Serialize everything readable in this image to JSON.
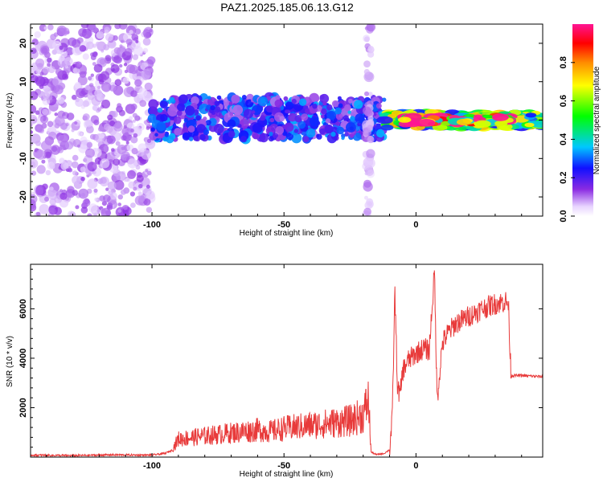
{
  "title": "PAZ1.2025.185.06.13.G12",
  "colors": {
    "snr_line": "#e83a3a",
    "spectrum_purple": "#8a2be2",
    "spectrum_blue": "#1010ff",
    "spectrum_cyan": "#00e0ff",
    "spectrum_green": "#00ff00",
    "spectrum_red": "#ff2020"
  },
  "chart_data": [
    {
      "type": "heatmap",
      "xlabel": "Height of straight line (km)",
      "ylabel": "Frequency (Hz)",
      "xlim": [
        -146,
        48
      ],
      "ylim": [
        -25,
        25
      ],
      "xticks": [
        -100,
        -50,
        0
      ],
      "xtick_labels": [
        "-100",
        "-50",
        "0"
      ],
      "yticks": [
        -20,
        -10,
        0,
        10,
        20
      ],
      "ytick_labels": [
        "-20",
        "-10",
        "0",
        "10",
        "20"
      ],
      "grid": false,
      "colorbar": {
        "label": "Normalized spectral amplitude",
        "range": [
          0,
          1
        ],
        "ticks": [
          0.0,
          0.2,
          0.4,
          0.6,
          0.8
        ],
        "tick_labels": [
          "0.0",
          "0.2",
          "0.4",
          "0.6",
          "0.8"
        ],
        "colormap": "rainbow (white-purple-blue-cyan-green-yellow-orange-red-magenta)"
      },
      "regions": [
        {
          "x_range": [
            -146,
            -100
          ],
          "freq_range": [
            -25,
            25
          ],
          "amplitude": 0.1,
          "description_of_signal": "broadband noise"
        },
        {
          "x_range": [
            -100,
            -12
          ],
          "freq_range": [
            -5,
            6
          ],
          "amplitude": 0.25
        },
        {
          "x_range": [
            -19,
            -17
          ],
          "freq_range": [
            -25,
            25
          ],
          "amplitude": 0.08
        },
        {
          "x_range": [
            -12,
            48
          ],
          "freq_range": [
            -2,
            2
          ],
          "amplitude": 0.55
        },
        {
          "x_range": [
            -5,
            36
          ],
          "freq_range": [
            -1,
            1
          ],
          "amplitude": 0.85
        }
      ]
    },
    {
      "type": "line",
      "xlabel": "Height of straight line (km)",
      "ylabel": "SNR (10 * v/v)",
      "xlim": [
        -146,
        48
      ],
      "ylim": [
        0,
        7800
      ],
      "xticks": [
        -100,
        -50,
        0
      ],
      "xtick_labels": [
        "-100",
        "-50",
        "0"
      ],
      "yticks": [
        2000,
        4000,
        6000
      ],
      "ytick_labels": [
        "2000",
        "4000",
        "6000"
      ],
      "grid": false,
      "series": [
        {
          "x": [
            -146,
            -130,
            -115,
            -100,
            -95,
            -92,
            -90,
            -85,
            -80,
            -75,
            -70,
            -65,
            -60,
            -55,
            -50,
            -45,
            -40,
            -35,
            -30,
            -25,
            -20,
            -18,
            -17,
            -15,
            -12,
            -10,
            -9,
            -8,
            -7,
            -6,
            -5,
            -3,
            0,
            3,
            5,
            7,
            8,
            10,
            12,
            15,
            20,
            25,
            30,
            34,
            35,
            36,
            40,
            48
          ],
          "y": [
            80,
            60,
            90,
            80,
            150,
            300,
            600,
            650,
            700,
            750,
            800,
            850,
            900,
            850,
            950,
            1000,
            1050,
            1100,
            1150,
            1200,
            1400,
            1900,
            200,
            100,
            150,
            300,
            1500,
            6700,
            2800,
            2500,
            3500,
            3900,
            4200,
            4400,
            4300,
            7500,
            2300,
            4600,
            5000,
            5400,
            5700,
            6000,
            6200,
            6300,
            6200,
            3300,
            3300,
            3250
          ]
        }
      ]
    }
  ]
}
